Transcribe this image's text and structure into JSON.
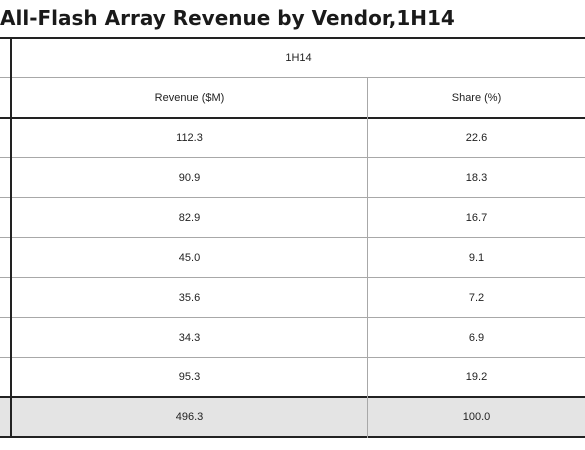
{
  "title": "All-Flash Array Revenue by Vendor,1H14",
  "chart_data": {
    "type": "table",
    "title": "All-Flash Array Revenue by Vendor,1H14",
    "period_header": "1H14",
    "columns": [
      "Revenue ($M)",
      "Share (%)"
    ],
    "rows": [
      {
        "revenue": "112.3",
        "share": "22.6"
      },
      {
        "revenue": "90.9",
        "share": "18.3"
      },
      {
        "revenue": "82.9",
        "share": "16.7"
      },
      {
        "revenue": "45.0",
        "share": "9.1"
      },
      {
        "revenue": "35.6",
        "share": "7.2"
      },
      {
        "revenue": "34.3",
        "share": "6.9"
      },
      {
        "revenue": "95.3",
        "share": "19.2"
      }
    ],
    "total": {
      "revenue": "496.3",
      "share": "100.0"
    }
  }
}
